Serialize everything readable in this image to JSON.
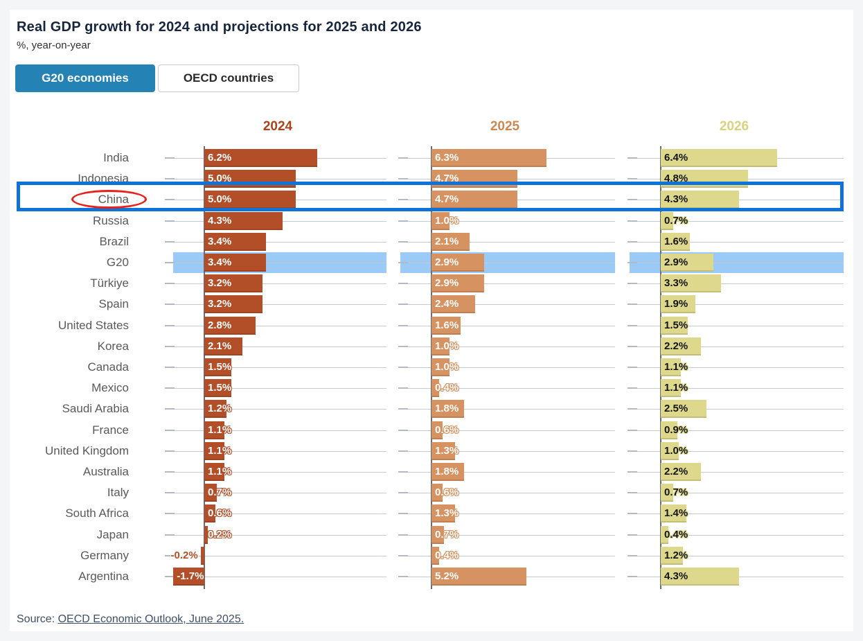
{
  "header": {
    "title": "Real GDP growth for 2024 and projections for 2025 and 2026",
    "subtitle": "%, year-on-year"
  },
  "toggle": {
    "active_label": "G20 economies",
    "inactive_label": "OECD countries"
  },
  "source": {
    "prefix": "Source: ",
    "link": "OECD Economic Outlook, June 2025."
  },
  "colors": {
    "accent_button": "#2482b5",
    "bar_2024": "#b24f28",
    "bar_2025": "#d69260",
    "bar_2026": "#ded88c",
    "header_2024": "#a8431a",
    "header_2025": "#cd8852",
    "header_2026": "#d9d37f",
    "g20_band": "#9bcaf6",
    "highlight_box": "#0f72d6",
    "circle_annotation": "#e5221b"
  },
  "chart_data": {
    "type": "bar",
    "orientation": "horizontal",
    "value_suffix": "%",
    "categories": [
      "India",
      "Indonesia",
      "China",
      "Russia",
      "Brazil",
      "G20",
      "Türkiye",
      "Spain",
      "United States",
      "Korea",
      "Canada",
      "Mexico",
      "Saudi Arabia",
      "France",
      "United Kingdom",
      "Australia",
      "Italy",
      "South Africa",
      "Japan",
      "Germany",
      "Argentina"
    ],
    "series": [
      {
        "name": "2024",
        "color": "#b24f28",
        "header_color": "#a8431a",
        "label_style": "light",
        "values": [
          6.2,
          5.0,
          5.0,
          4.3,
          3.4,
          3.4,
          3.2,
          3.2,
          2.8,
          2.1,
          1.5,
          1.5,
          1.2,
          1.1,
          1.1,
          1.1,
          0.7,
          0.6,
          0.2,
          -0.2,
          -1.7
        ]
      },
      {
        "name": "2025",
        "color": "#d69260",
        "header_color": "#cd8852",
        "label_style": "light",
        "values": [
          6.3,
          4.7,
          4.7,
          1.0,
          2.1,
          2.9,
          2.9,
          2.4,
          1.6,
          1.0,
          1.0,
          0.4,
          1.8,
          0.6,
          1.3,
          1.8,
          0.6,
          1.3,
          0.7,
          0.4,
          5.2
        ]
      },
      {
        "name": "2026",
        "color": "#ded88c",
        "header_color": "#d9d37f",
        "label_style": "dark",
        "values": [
          6.4,
          4.8,
          4.3,
          0.7,
          1.6,
          2.9,
          3.3,
          1.9,
          1.5,
          2.2,
          1.1,
          1.1,
          2.5,
          0.9,
          1.0,
          2.2,
          0.7,
          1.4,
          0.4,
          1.2,
          4.3
        ]
      }
    ],
    "annotations": {
      "g20_band_row": "G20",
      "boxed_row": "China",
      "circled_country": "China"
    }
  }
}
